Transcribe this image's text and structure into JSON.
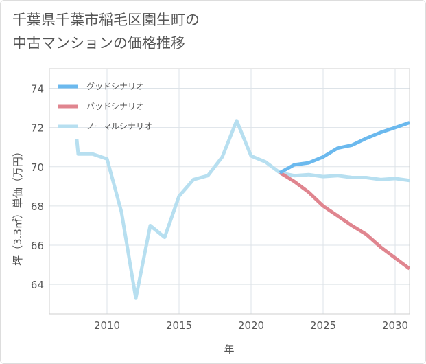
{
  "title_lines": [
    "千葉県千葉市稲毛区園生町の",
    "中古マンションの価格推移"
  ],
  "chart_data": {
    "type": "line",
    "title": "千葉県千葉市稲毛区園生町の中古マンションの価格推移",
    "xlabel": "年",
    "ylabel": "坪（3.3㎡）単価（万円）",
    "xlim": [
      2006,
      2031
    ],
    "ylim": [
      62.5,
      75
    ],
    "x_ticks": [
      2010,
      2015,
      2020,
      2025,
      2030
    ],
    "y_ticks": [
      64,
      66,
      68,
      70,
      72,
      74
    ],
    "grid": true,
    "legend_position": "top-left",
    "series": [
      {
        "name": "グッドシナリオ",
        "color": "#6bb9ee",
        "x": [
          2022,
          2023,
          2024,
          2025,
          2026,
          2027,
          2028,
          2029,
          2030,
          2031
        ],
        "values": [
          69.7,
          70.1,
          70.2,
          70.5,
          70.95,
          71.1,
          71.45,
          71.75,
          72.0,
          72.25
        ]
      },
      {
        "name": "バッドシナリオ",
        "color": "#e0858f",
        "x": [
          2022,
          2023,
          2024,
          2025,
          2026,
          2027,
          2028,
          2029,
          2030,
          2031
        ],
        "values": [
          69.7,
          69.25,
          68.7,
          68.0,
          67.5,
          67.0,
          66.55,
          65.9,
          65.35,
          64.8
        ]
      },
      {
        "name": "ノーマルシナリオ",
        "color": "#b7dff0",
        "x": [
          2008,
          2009,
          2010,
          2011,
          2012,
          2013,
          2014,
          2015,
          2016,
          2017,
          2018,
          2019,
          2020,
          2021,
          2022,
          2023,
          2024,
          2025,
          2026,
          2027,
          2028,
          2029,
          2030,
          2031
        ],
        "values": [
          70.65,
          70.65,
          70.4,
          67.7,
          63.3,
          67.0,
          66.4,
          68.5,
          69.35,
          69.55,
          70.5,
          72.35,
          70.55,
          70.25,
          69.7,
          69.55,
          69.6,
          69.5,
          69.55,
          69.45,
          69.45,
          69.35,
          69.4,
          69.3
        ]
      }
    ]
  }
}
